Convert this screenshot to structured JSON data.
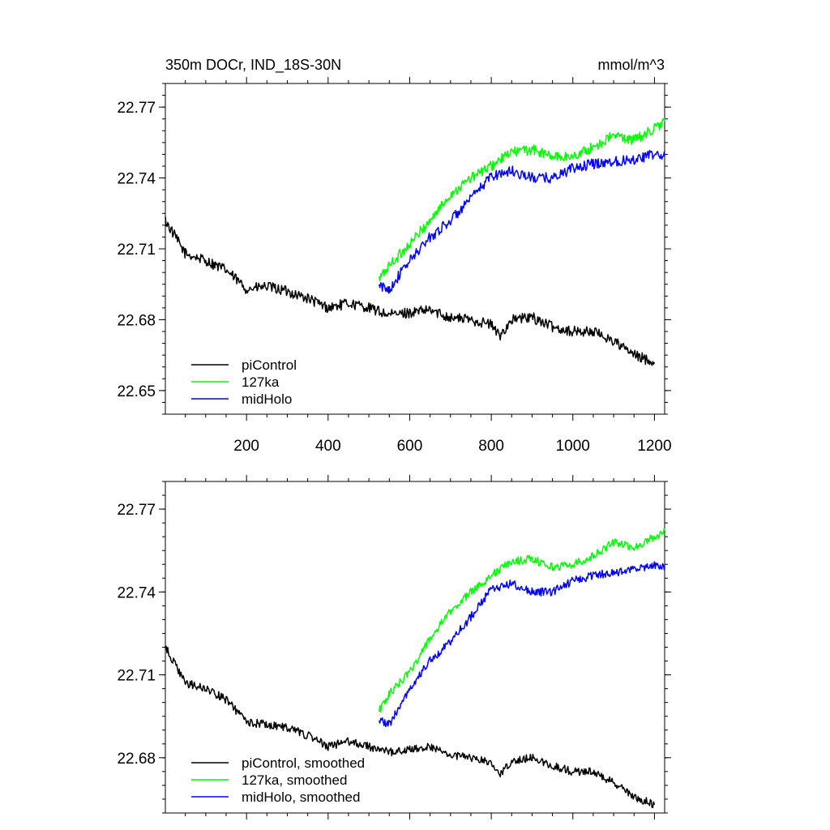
{
  "chart_data": {
    "title": "350m DOCr, IND_18S-30N",
    "units": "mmol/m^3",
    "panels": [
      {
        "type": "line",
        "xlim": [
          1,
          1225
        ],
        "ylim": [
          22.64,
          22.78
        ],
        "y_ticks": [
          22.65,
          22.68,
          22.71,
          22.74,
          22.77
        ],
        "y_tick_labels": [
          "22.65",
          "22.68",
          "22.71",
          "22.74",
          "22.77"
        ],
        "x_ticks": [
          200,
          400,
          600,
          800,
          1000,
          1200
        ],
        "x_tick_labels": [
          "200",
          "400",
          "600",
          "800",
          "1000",
          "1200"
        ],
        "legend_position": "bottom-left",
        "series": [
          {
            "name": "piControl",
            "color": "#000000",
            "x": [
              1,
              50,
              100,
              150,
              200,
              250,
              300,
              350,
              400,
              450,
              500,
              550,
              600,
              650,
              700,
              750,
              800,
              820,
              850,
              900,
              950,
              1000,
              1050,
              1100,
              1150,
              1200
            ],
            "y": [
              22.722,
              22.708,
              22.705,
              22.701,
              22.693,
              22.694,
              22.692,
              22.689,
              22.685,
              22.687,
              22.685,
              22.682,
              22.683,
              22.684,
              22.681,
              22.68,
              22.678,
              22.673,
              22.68,
              22.681,
              22.677,
              22.675,
              22.675,
              22.671,
              22.665,
              22.662
            ]
          },
          {
            "name": "127ka",
            "color": "#00ff00",
            "x": [
              525,
              550,
              600,
              650,
              700,
              750,
              800,
              850,
              900,
              950,
              1000,
              1050,
              1100,
              1150,
              1200,
              1225
            ],
            "y": [
              22.697,
              22.703,
              22.712,
              22.722,
              22.733,
              22.74,
              22.745,
              22.751,
              22.752,
              22.749,
              22.749,
              22.753,
              22.758,
              22.756,
              22.761,
              22.764
            ]
          },
          {
            "name": "midHolo",
            "color": "#0000ff",
            "x": [
              525,
              550,
              600,
              650,
              700,
              750,
              800,
              850,
              900,
              950,
              1000,
              1050,
              1100,
              1150,
              1200,
              1225
            ],
            "y": [
              22.694,
              22.693,
              22.705,
              22.715,
              22.722,
              22.731,
              22.741,
              22.743,
              22.74,
              22.74,
              22.744,
              22.746,
              22.747,
              22.748,
              22.75,
              22.749
            ]
          }
        ]
      },
      {
        "type": "line",
        "xlim": [
          1,
          1225
        ],
        "ylim": [
          22.66,
          22.78
        ],
        "y_ticks": [
          22.68,
          22.71,
          22.74,
          22.77
        ],
        "y_tick_labels": [
          "22.68",
          "22.71",
          "22.74",
          "22.77"
        ],
        "x_ticks": [
          200,
          400,
          600,
          800,
          1000,
          1200
        ],
        "x_tick_labels": [],
        "legend_position": "bottom-left",
        "series": [
          {
            "name": "piControl, smoothed",
            "color": "#000000",
            "x": [
              1,
              50,
              100,
              150,
              200,
              250,
              300,
              350,
              400,
              450,
              500,
              550,
              600,
              650,
              700,
              750,
              800,
              820,
              850,
              900,
              950,
              1000,
              1050,
              1100,
              1150,
              1200
            ],
            "y": [
              22.72,
              22.707,
              22.705,
              22.701,
              22.693,
              22.692,
              22.691,
              22.688,
              22.684,
              22.686,
              22.684,
              22.682,
              22.683,
              22.684,
              22.681,
              22.68,
              22.678,
              22.674,
              22.679,
              22.68,
              22.677,
              22.675,
              22.675,
              22.671,
              22.666,
              22.663
            ]
          },
          {
            "name": "127ka, smoothed",
            "color": "#00ff00",
            "x": [
              525,
              550,
              600,
              650,
              700,
              750,
              800,
              850,
              900,
              950,
              1000,
              1050,
              1100,
              1150,
              1200,
              1225
            ],
            "y": [
              22.697,
              22.703,
              22.711,
              22.723,
              22.733,
              22.74,
              22.746,
              22.751,
              22.752,
              22.749,
              22.75,
              22.753,
              22.758,
              22.756,
              22.76,
              22.762
            ]
          },
          {
            "name": "midHolo, smoothed",
            "color": "#0000ff",
            "x": [
              525,
              550,
              600,
              650,
              700,
              750,
              800,
              850,
              900,
              950,
              1000,
              1050,
              1100,
              1150,
              1200,
              1225
            ],
            "y": [
              22.694,
              22.692,
              22.705,
              22.715,
              22.722,
              22.731,
              22.741,
              22.743,
              22.74,
              22.74,
              22.744,
              22.746,
              22.747,
              22.748,
              22.75,
              22.749
            ]
          }
        ]
      }
    ]
  }
}
